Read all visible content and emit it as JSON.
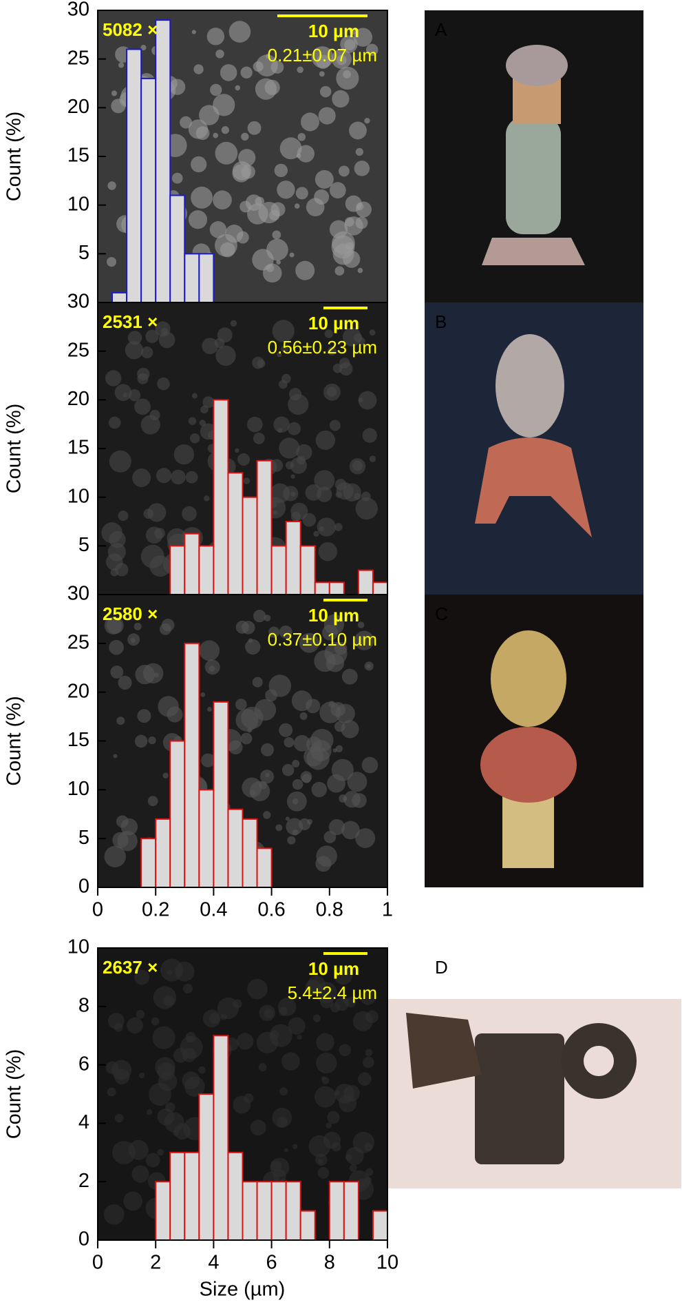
{
  "chart_data": [
    {
      "type": "histogram",
      "label": "A",
      "magnification": "5082 ×",
      "scale_bar": "10 µm",
      "mean_size": "0.21±0.07 µm",
      "ylabel": "Count (%)",
      "color": "#d9d9d9",
      "edge_color": "#1a1acc",
      "bins": [
        0.05,
        0.1,
        0.15,
        0.2,
        0.25,
        0.3,
        0.35,
        0.4
      ],
      "values": [
        1,
        26,
        23,
        29,
        11,
        5,
        5
      ],
      "xlim": [
        0,
        1
      ],
      "ylim": [
        0,
        30
      ],
      "yticks": [
        5,
        10,
        15,
        20,
        25,
        30
      ]
    },
    {
      "type": "histogram",
      "label": "B",
      "magnification": "2531 ×",
      "scale_bar": "10 µm",
      "mean_size": "0.56±0.23 µm",
      "ylabel": "Count (%)",
      "color": "#d9d9d9",
      "edge_color": "#dd1111",
      "bins": [
        0.25,
        0.3,
        0.35,
        0.4,
        0.45,
        0.5,
        0.55,
        0.6,
        0.65,
        0.7,
        0.75,
        0.8,
        0.85,
        0.9,
        0.95,
        1.0
      ],
      "values": [
        5,
        6.25,
        5,
        20,
        12.5,
        10,
        13.75,
        5,
        7.5,
        5,
        1.25,
        1.25,
        0,
        2.5,
        1.25
      ],
      "xlim": [
        0,
        1
      ],
      "ylim": [
        0,
        30
      ],
      "yticks": [
        5,
        10,
        15,
        20,
        25,
        30
      ]
    },
    {
      "type": "histogram",
      "label": "C",
      "magnification": "2580 ×",
      "scale_bar": "10 µm",
      "mean_size": "0.37±0.10 µm",
      "ylabel": "Count (%)",
      "color": "#d9d9d9",
      "edge_color": "#dd1111",
      "bins": [
        0.15,
        0.2,
        0.25,
        0.3,
        0.35,
        0.4,
        0.45,
        0.5,
        0.55,
        0.6
      ],
      "values": [
        5,
        7,
        15,
        25,
        10,
        19,
        8,
        7,
        4
      ],
      "xlim": [
        0,
        1
      ],
      "ylim": [
        0,
        30
      ],
      "yticks": [
        0,
        5,
        10,
        15,
        20,
        25,
        30
      ],
      "xticks": [
        0,
        0.2,
        0.4,
        0.6,
        0.8,
        1
      ]
    },
    {
      "type": "histogram",
      "label": "D",
      "magnification": "2637 ×",
      "scale_bar": "10 µm",
      "mean_size": "5.4±2.4 µm",
      "ylabel": "Count (%)",
      "xlabel": "Size (µm)",
      "color": "#d9d9d9",
      "edge_color": "#dd1111",
      "bins": [
        2,
        2.5,
        3,
        3.5,
        4,
        4.5,
        5,
        5.5,
        6,
        6.5,
        7,
        7.5,
        8,
        8.5,
        9,
        9.5,
        10
      ],
      "values": [
        2,
        3,
        3,
        5,
        7,
        3,
        2,
        2,
        2,
        2,
        1,
        0,
        2,
        2,
        0,
        1
      ],
      "xlim": [
        0,
        10
      ],
      "ylim": [
        0,
        10
      ],
      "yticks": [
        0,
        2,
        4,
        6,
        8,
        10
      ],
      "xticks": [
        0,
        2,
        4,
        6,
        8,
        10
      ]
    }
  ]
}
